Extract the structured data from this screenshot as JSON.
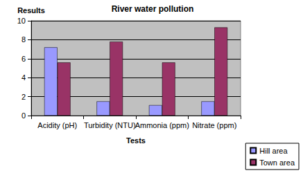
{
  "chart_data": {
    "type": "bar",
    "title": "River water pollution",
    "y_label": "Results",
    "x_label": "Tests",
    "categories": [
      "Acidity (pH)",
      "Turbidity (NTU)",
      "Ammonia (ppm)",
      "Nitrate (ppm)"
    ],
    "series": [
      {
        "name": "Hill area",
        "color": "#9999ff",
        "values": [
          7.2,
          1.5,
          1.1,
          1.5
        ]
      },
      {
        "name": "Town area",
        "color": "#993366",
        "values": [
          5.6,
          7.8,
          5.6,
          9.3
        ]
      }
    ],
    "ylim": [
      0,
      10
    ],
    "yticks": [
      0,
      2,
      4,
      6,
      8,
      10
    ],
    "grid": true,
    "legend": "lower right"
  }
}
